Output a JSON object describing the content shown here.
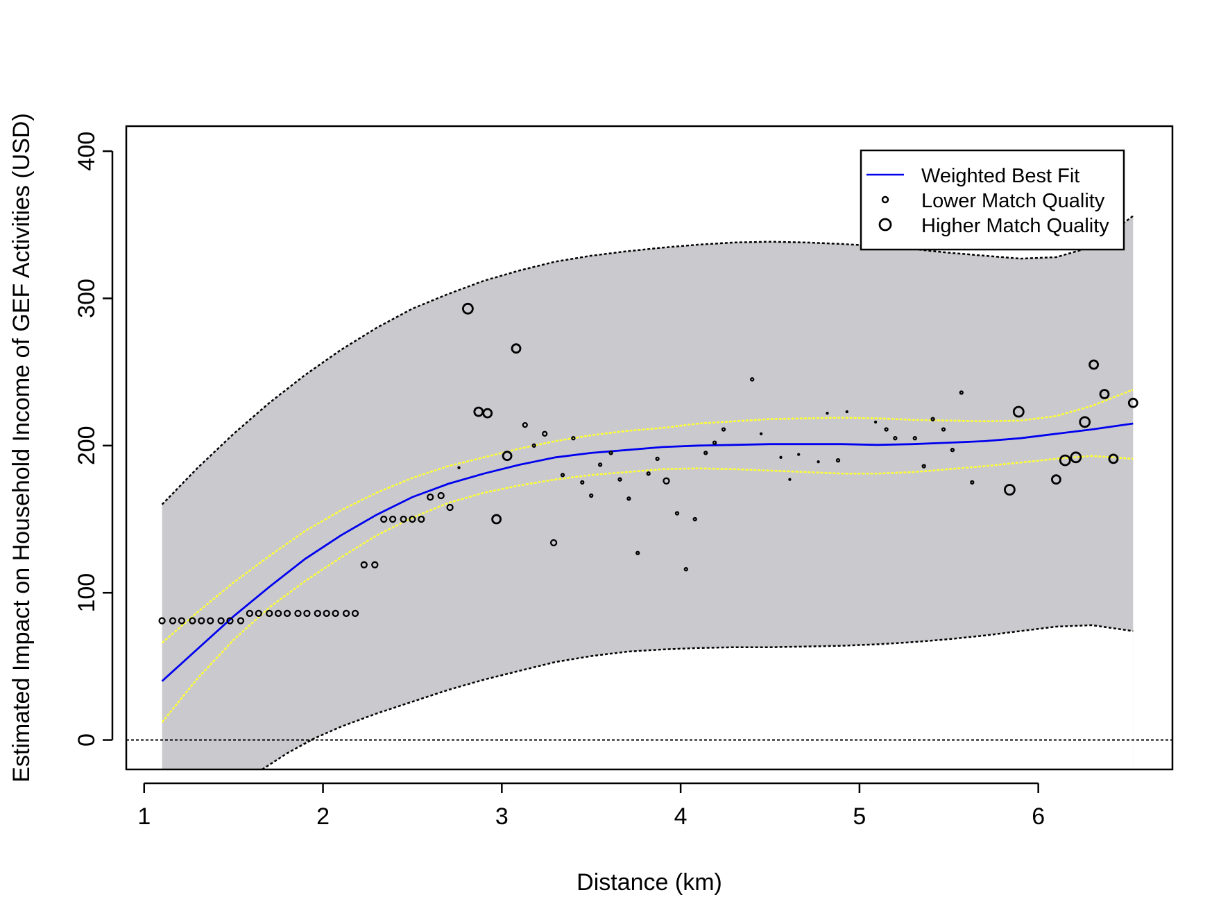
{
  "chart_data": {
    "type": "scatter",
    "title": "",
    "xlabel": "Distance (km)",
    "ylabel": "Estimated Impact on Household Income of GEF Activities (USD)",
    "xlim": [
      0.9,
      6.75
    ],
    "ylim": [
      -20,
      417
    ],
    "x_ticks": [
      1,
      2,
      3,
      4,
      5,
      6
    ],
    "y_ticks": [
      0,
      100,
      200,
      300,
      400
    ],
    "x_tick_labels": [
      "1",
      "2",
      "3",
      "4",
      "5",
      "6"
    ],
    "y_tick_labels": [
      "0",
      "100",
      "200",
      "300",
      "400"
    ],
    "grid": false,
    "reference_line_y": 0,
    "legend": {
      "position": "top-right",
      "entries": [
        {
          "label": "Weighted Best Fit",
          "symbol": "line",
          "color": "#0000ee"
        },
        {
          "label": "Lower Match Quality",
          "symbol": "small-circle"
        },
        {
          "label": "Higher Match Quality",
          "symbol": "large-circle"
        }
      ]
    },
    "colors": {
      "fit": "#0000ee",
      "ci_inner": "#ffff33",
      "band": "#cacace",
      "bound": "#000000",
      "points": "#000000"
    },
    "series": [
      {
        "name": "Weighted Best Fit",
        "kind": "line",
        "x": [
          1.1,
          1.3,
          1.5,
          1.7,
          1.9,
          2.1,
          2.3,
          2.5,
          2.7,
          2.9,
          3.1,
          3.3,
          3.5,
          3.7,
          3.9,
          4.1,
          4.3,
          4.5,
          4.7,
          4.9,
          5.1,
          5.3,
          5.5,
          5.7,
          5.9,
          6.1,
          6.3,
          6.53
        ],
        "y": [
          40,
          62,
          84,
          104,
          123,
          139,
          153,
          165,
          174,
          181,
          187,
          192,
          195,
          197,
          199,
          200,
          200.5,
          201,
          201,
          201,
          200.5,
          201,
          202,
          203,
          205,
          208,
          211,
          215
        ]
      },
      {
        "name": "inner-upper",
        "kind": "ci",
        "x": [
          1.1,
          1.3,
          1.5,
          1.7,
          1.9,
          2.1,
          2.3,
          2.5,
          2.7,
          2.9,
          3.1,
          3.3,
          3.5,
          3.7,
          3.9,
          4.1,
          4.3,
          4.5,
          4.7,
          4.9,
          5.1,
          5.3,
          5.5,
          5.7,
          5.9,
          6.1,
          6.3,
          6.53
        ],
        "y": [
          66,
          87,
          107,
          125,
          142,
          156,
          168,
          178,
          186,
          192,
          198,
          203,
          207,
          210,
          212,
          215,
          216.5,
          218,
          218.5,
          219,
          218.5,
          217.5,
          217,
          216.5,
          217,
          220,
          227,
          238
        ]
      },
      {
        "name": "inner-lower",
        "kind": "ci",
        "x": [
          1.1,
          1.3,
          1.5,
          1.7,
          1.9,
          2.1,
          2.3,
          2.5,
          2.7,
          2.9,
          3.1,
          3.3,
          3.5,
          3.7,
          3.9,
          4.1,
          4.3,
          4.5,
          4.7,
          4.9,
          5.1,
          5.3,
          5.5,
          5.7,
          5.9,
          6.1,
          6.3,
          6.53
        ],
        "y": [
          12,
          42,
          68,
          90,
          108,
          124,
          139,
          151,
          161,
          168,
          173,
          177,
          180,
          182,
          184,
          184.5,
          184,
          183,
          182,
          181,
          181,
          182,
          184,
          186,
          188.5,
          191,
          193,
          191
        ]
      },
      {
        "name": "outer-upper",
        "kind": "bound",
        "x": [
          1.1,
          1.3,
          1.5,
          1.7,
          1.9,
          2.1,
          2.3,
          2.5,
          2.7,
          2.9,
          3.1,
          3.3,
          3.5,
          3.7,
          3.9,
          4.1,
          4.3,
          4.5,
          4.7,
          4.9,
          5.1,
          5.3,
          5.5,
          5.7,
          5.9,
          6.1,
          6.3,
          6.53
        ],
        "y": [
          160,
          185,
          208,
          229,
          248,
          265,
          280,
          293,
          303,
          312,
          319,
          325,
          329,
          332,
          334.5,
          336.5,
          338,
          338.5,
          338,
          337,
          335.5,
          333.5,
          331,
          329,
          327,
          328,
          335,
          356
        ]
      },
      {
        "name": "outer-lower",
        "kind": "bound",
        "x": [
          1.66,
          1.8,
          1.95,
          2.1,
          2.3,
          2.5,
          2.7,
          2.9,
          3.1,
          3.3,
          3.5,
          3.7,
          3.9,
          4.1,
          4.3,
          4.5,
          4.7,
          4.9,
          5.1,
          5.3,
          5.5,
          5.7,
          5.9,
          6.1,
          6.3,
          6.53
        ],
        "y": [
          -20,
          -9,
          1,
          9,
          18,
          26,
          34,
          41,
          47,
          53,
          57,
          60,
          61.5,
          62.5,
          63,
          63,
          63.5,
          64,
          65,
          66.5,
          68.5,
          71,
          74,
          77,
          78,
          74
        ]
      },
      {
        "name": "points",
        "kind": "scatter",
        "x": [
          1.1,
          1.16,
          1.21,
          1.27,
          1.32,
          1.37,
          1.43,
          1.48,
          1.54,
          1.59,
          1.64,
          1.7,
          1.75,
          1.8,
          1.86,
          1.91,
          1.97,
          2.02,
          2.07,
          2.13,
          2.18,
          2.23,
          2.29,
          2.34,
          2.39,
          2.45,
          2.5,
          2.55,
          2.6,
          2.66,
          2.71,
          2.76,
          2.81,
          2.87,
          2.92,
          2.97,
          3.03,
          3.08,
          3.13,
          3.18,
          3.24,
          3.29,
          3.34,
          3.4,
          3.45,
          3.5,
          3.55,
          3.61,
          3.66,
          3.71,
          3.76,
          3.82,
          3.87,
          3.92,
          3.98,
          4.03,
          4.08,
          4.14,
          4.19,
          4.24,
          4.4,
          4.45,
          4.56,
          4.61,
          4.66,
          4.77,
          4.82,
          4.88,
          4.93,
          5.09,
          5.15,
          5.2,
          5.31,
          5.36,
          5.41,
          5.47,
          5.52,
          5.57,
          5.63,
          5.84,
          5.89,
          6.1,
          6.15,
          6.21,
          6.26,
          6.31,
          6.37,
          6.42,
          6.53
        ],
        "y": [
          81,
          81,
          81,
          81,
          81,
          81,
          81,
          81,
          81,
          86,
          86,
          86,
          86,
          86,
          86,
          86,
          86,
          86,
          86,
          86,
          86,
          119,
          119,
          150,
          150,
          150,
          150,
          150,
          165,
          166,
          158,
          185,
          293,
          223,
          222,
          150,
          193,
          266,
          214,
          200,
          208,
          134,
          180,
          205,
          175,
          166,
          187,
          195,
          177,
          164,
          127,
          181,
          191,
          176,
          154,
          116,
          150,
          195,
          202,
          211,
          245,
          208,
          192,
          177,
          194,
          189,
          222,
          190,
          223,
          216,
          211,
          205,
          205,
          186,
          218,
          211,
          197,
          236,
          175,
          170,
          223,
          177,
          190,
          192,
          216,
          255,
          235,
          191,
          229
        ],
        "size": [
          4,
          4,
          4,
          4,
          4,
          4,
          4,
          4,
          4,
          4,
          4,
          4,
          4,
          4,
          4,
          4,
          4,
          4,
          4,
          4,
          4,
          4,
          4,
          4,
          4,
          4,
          4,
          4,
          4,
          4,
          4,
          1,
          7,
          6,
          6,
          6,
          6,
          6,
          3,
          2,
          3,
          4,
          2,
          2,
          2,
          2,
          2,
          2,
          2,
          2,
          2,
          2,
          2,
          4,
          2,
          2,
          2,
          2,
          2,
          2,
          2,
          1,
          1,
          1,
          1,
          1,
          1,
          2,
          1,
          1,
          2,
          2,
          2,
          2,
          2,
          2,
          2,
          2,
          2,
          7,
          7,
          6,
          7,
          7,
          7,
          6,
          6,
          6,
          6
        ]
      }
    ]
  }
}
